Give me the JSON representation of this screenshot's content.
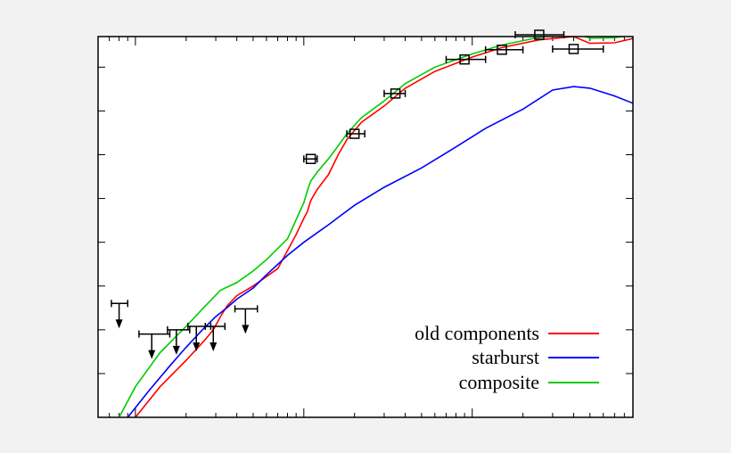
{
  "chart_data": {
    "type": "line",
    "title": "",
    "xlabel": "",
    "ylabel": "",
    "x_scale": "log",
    "y_scale": "log",
    "grid": false,
    "legend_position": "bottom-right",
    "xlim": [
      0.6,
      900
    ],
    "ylim": [
      0.01,
      5000000
    ],
    "series": [
      {
        "name": "old components",
        "color": "#ff0000",
        "x": [
          1,
          1.4,
          2,
          2.6,
          2.9,
          3.2,
          3.5,
          4,
          5,
          7,
          9,
          10,
          10.5,
          11,
          12,
          14,
          16,
          18,
          22,
          30,
          40,
          60,
          100,
          150,
          250,
          400,
          500,
          700,
          900
        ],
        "y": [
          0.01,
          0.05,
          0.2,
          0.6,
          1.0,
          2.0,
          3.5,
          6,
          10,
          25,
          150,
          350,
          500,
          900,
          1600,
          3500,
          10000,
          22000,
          55000,
          130000,
          330000,
          800000,
          1700000,
          2800000,
          4200000,
          5000000,
          3500000,
          3600000,
          4500000
        ]
      },
      {
        "name": "starburst",
        "color": "#0000ff",
        "x": [
          0.9,
          1.2,
          1.6,
          2,
          2.5,
          3,
          3.5,
          4,
          5,
          6,
          8,
          10,
          14,
          20,
          30,
          50,
          80,
          120,
          200,
          300,
          400,
          500,
          700,
          900
        ],
        "y": [
          0.01,
          0.04,
          0.15,
          0.4,
          1.0,
          2.0,
          3.2,
          5,
          9,
          18,
          50,
          100,
          250,
          700,
          1800,
          5000,
          15000,
          40000,
          110000,
          300000,
          360000,
          330000,
          220000,
          150000
        ]
      },
      {
        "name": "composite",
        "color": "#00cc00",
        "x": [
          0.8,
          1,
          1.4,
          2,
          2.6,
          3.2,
          4,
          5,
          6,
          8,
          10,
          10.5,
          11,
          12,
          14,
          16,
          18,
          22,
          30,
          40,
          60,
          100,
          150,
          250,
          400,
          500,
          700,
          900
        ],
        "y": [
          0.01,
          0.05,
          0.3,
          1.2,
          3.5,
          8,
          12,
          22,
          40,
          120,
          800,
          1500,
          2500,
          4000,
          8000,
          16000,
          30000,
          70000,
          170000,
          420000,
          1000000,
          2000000,
          3200000,
          4800000,
          6000000,
          4600000,
          4700000,
          5500000
        ]
      }
    ],
    "detections": {
      "x": [
        11,
        20,
        35,
        90,
        150,
        250,
        400
      ],
      "y": [
        8000,
        30000,
        250000,
        1500000,
        2500000,
        5500000,
        2600000
      ],
      "xerr": [
        [
          10,
          12
        ],
        [
          18,
          23
        ],
        [
          30,
          40
        ],
        [
          70,
          120
        ],
        [
          120,
          200
        ],
        [
          180,
          350
        ],
        [
          300,
          600
        ]
      ]
    },
    "upper_limits": {
      "x": [
        0.8,
        1.25,
        1.75,
        2.3,
        2.9,
        4.5
      ],
      "y": [
        4,
        0.8,
        1.0,
        1.2,
        1.2,
        3.0
      ],
      "xerr": [
        [
          0.72,
          0.9
        ],
        [
          1.05,
          1.6
        ],
        [
          1.55,
          2.1
        ],
        [
          2.05,
          2.8
        ],
        [
          2.6,
          3.4
        ],
        [
          3.9,
          5.3
        ]
      ]
    }
  }
}
